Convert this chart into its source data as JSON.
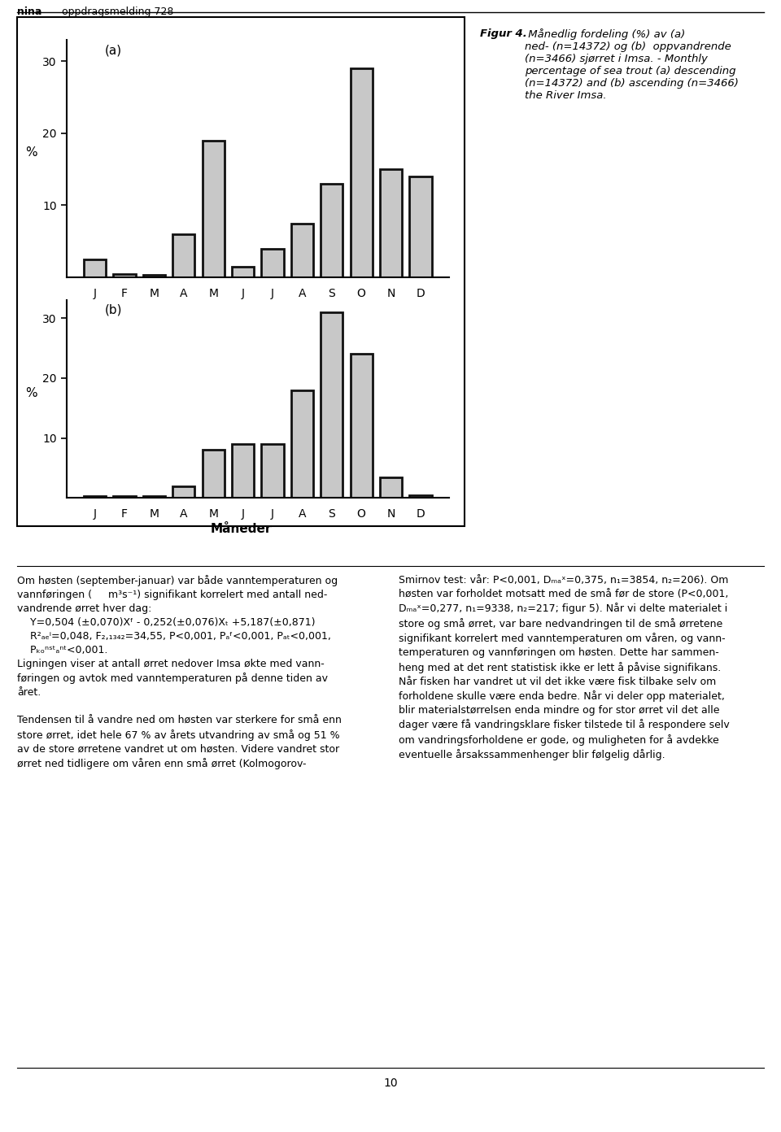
{
  "months": [
    "J",
    "F",
    "M",
    "A",
    "M",
    "J",
    "J",
    "A",
    "S",
    "O",
    "N",
    "D"
  ],
  "chart_a_values": [
    2.5,
    0.5,
    0.3,
    6.0,
    19.0,
    1.5,
    4.0,
    7.5,
    13.0,
    29.0,
    15.0,
    14.0
  ],
  "chart_b_values": [
    0.3,
    0.3,
    0.3,
    2.0,
    8.0,
    9.0,
    9.0,
    18.0,
    31.0,
    24.0,
    3.5,
    0.5
  ],
  "bar_face_color": "#c8c8c8",
  "bar_edge_color": "#111111",
  "bar_edge_width": 2.0,
  "ylabel": "%",
  "xlabel": "Måneder",
  "label_a": "(a)",
  "label_b": "(b)",
  "yticks": [
    10,
    20,
    30
  ],
  "ylim": [
    0,
    33
  ],
  "figcaption_bold": "Figur 4.",
  "figcaption_rest": " Månedlig fordeling (%) av (a)\nned- (n=14372) og (b)  oppvandrende\n(n=3466) sjørret i Imsa. - Monthly\npercentage of sea trout (a) descending\n(n=14372) and (b) ascending (n=3466)\nthe River Imsa.",
  "header_bold": "nina",
  "header_normal": " oppdragsmelding 728",
  "page_number": "10"
}
